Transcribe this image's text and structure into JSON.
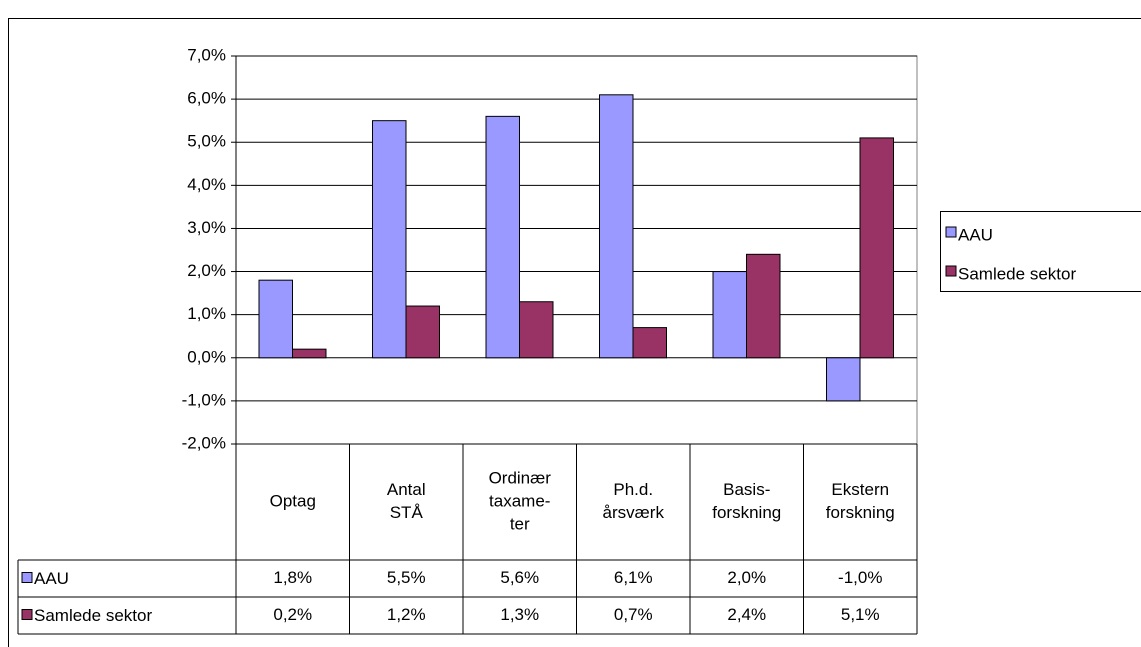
{
  "chart_data": {
    "type": "bar",
    "categories": [
      [
        "Optag"
      ],
      [
        "Antal",
        "STÅ"
      ],
      [
        "Ordinær",
        "taxame-",
        "ter"
      ],
      [
        "Ph.d.",
        "årsværk"
      ],
      [
        "Basis-",
        "forskning"
      ],
      [
        "Ekstern",
        "forskning"
      ]
    ],
    "series": [
      {
        "name": "AAU",
        "color": "#9999ff",
        "values": [
          1.8,
          5.5,
          5.6,
          6.1,
          2.0,
          -1.0
        ],
        "value_labels": [
          "1,8%",
          "5,5%",
          "5,6%",
          "6,1%",
          "2,0%",
          "-1,0%"
        ]
      },
      {
        "name": "Samlede sektor",
        "color": "#993366",
        "values": [
          0.2,
          1.2,
          1.3,
          0.7,
          2.4,
          5.1
        ],
        "value_labels": [
          "0,2%",
          "1,2%",
          "1,3%",
          "0,7%",
          "2,4%",
          "5,1%"
        ]
      }
    ],
    "ylim": [
      -2,
      7
    ],
    "yticks": [
      {
        "value": -2,
        "label": "-2,0%"
      },
      {
        "value": -1,
        "label": "-1,0%"
      },
      {
        "value": 0,
        "label": "0,0%"
      },
      {
        "value": 1,
        "label": "1,0%"
      },
      {
        "value": 2,
        "label": "2,0%"
      },
      {
        "value": 3,
        "label": "3,0%"
      },
      {
        "value": 4,
        "label": "4,0%"
      },
      {
        "value": 5,
        "label": "5,0%"
      },
      {
        "value": 6,
        "label": "6,0%"
      },
      {
        "value": 7,
        "label": "7,0%"
      }
    ],
    "grid": true,
    "legend": "right"
  }
}
